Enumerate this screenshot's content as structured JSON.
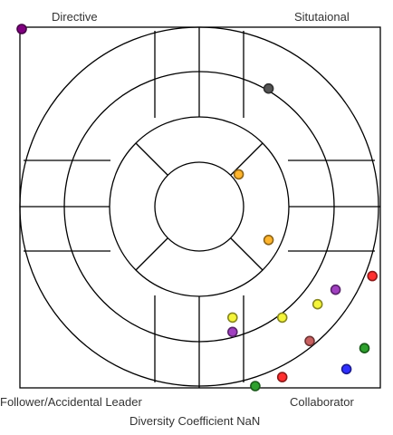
{
  "labels": {
    "top_left": "Directive",
    "top_right": "Situtaional",
    "bottom_left": "Follower/Accidental Leader",
    "bottom_right": "Collaborator",
    "footer": "Diversity Coefficient NaN"
  },
  "colors": {
    "frame": "#000000",
    "line": "#000000"
  },
  "chart_data": {
    "type": "scatter",
    "title": "",
    "xlim": [
      0,
      1
    ],
    "ylim": [
      0,
      1
    ],
    "grid": false,
    "points": [
      {
        "x": 0.005,
        "y": 0.995,
        "color": "#800080"
      },
      {
        "x": 0.69,
        "y": 0.83,
        "color": "#555555"
      },
      {
        "x": 0.607,
        "y": 0.592,
        "color": "#ffb52e"
      },
      {
        "x": 0.69,
        "y": 0.41,
        "color": "#ffb52e"
      },
      {
        "x": 0.978,
        "y": 0.31,
        "color": "#ff3030"
      },
      {
        "x": 0.876,
        "y": 0.272,
        "color": "#a040c0"
      },
      {
        "x": 0.826,
        "y": 0.232,
        "color": "#f5f53a"
      },
      {
        "x": 0.59,
        "y": 0.195,
        "color": "#f5f53a"
      },
      {
        "x": 0.728,
        "y": 0.195,
        "color": "#f5f53a"
      },
      {
        "x": 0.59,
        "y": 0.155,
        "color": "#a040c0"
      },
      {
        "x": 0.804,
        "y": 0.13,
        "color": "#c86060"
      },
      {
        "x": 0.956,
        "y": 0.11,
        "color": "#2ea02e"
      },
      {
        "x": 0.906,
        "y": 0.052,
        "color": "#3030ff"
      },
      {
        "x": 0.728,
        "y": 0.03,
        "color": "#ff3030"
      },
      {
        "x": 0.653,
        "y": 0.005,
        "color": "#2ea02e"
      }
    ]
  }
}
